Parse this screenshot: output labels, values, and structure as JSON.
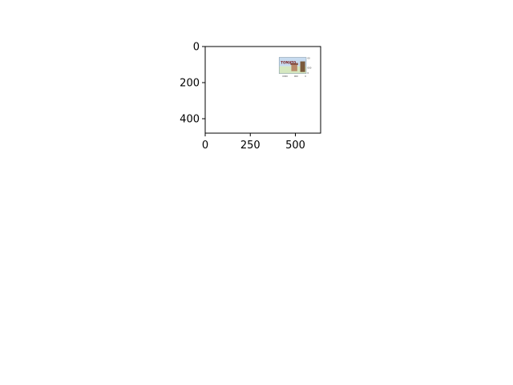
{
  "chart_data": {
    "type": "image",
    "title": "",
    "xlabel": "",
    "ylabel": "",
    "xlim": [
      0,
      640
    ],
    "ylim": [
      480,
      0
    ],
    "xticks": [
      0,
      250,
      500
    ],
    "yticks": [
      0,
      200,
      400
    ],
    "xtick_labels": [
      "0",
      "250",
      "500"
    ],
    "ytick_labels": [
      "0",
      "200",
      "400"
    ],
    "grid": false,
    "inset_image": {
      "extent_x": [
        410,
        560
      ],
      "extent_y": [
        60,
        150
      ],
      "sky_color": "#c7dbef",
      "ground_color": "#d6e8c0",
      "thumbnail_texts": {
        "title": "TOMATO",
        "x_labels": [
          "0000",
          "000",
          "0"
        ],
        "side_labels": [
          "00",
          "000",
          "0"
        ]
      }
    }
  }
}
